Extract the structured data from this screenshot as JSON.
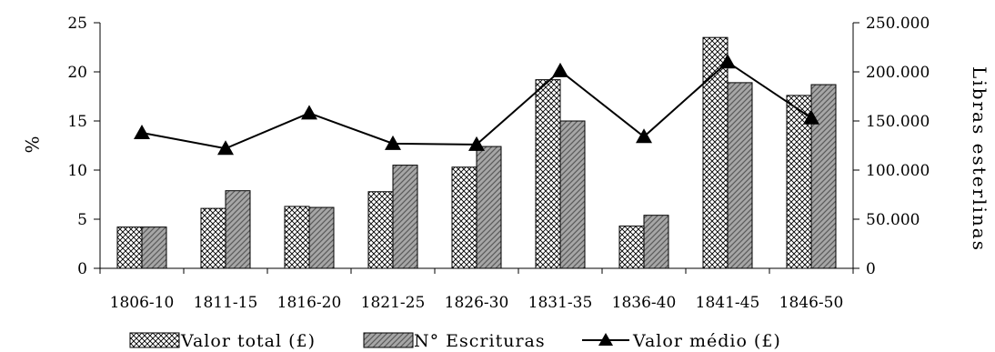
{
  "chart_data": {
    "type": "bar",
    "categories": [
      "1806-10",
      "1811-15",
      "1816-20",
      "1821-25",
      "1826-30",
      "1831-35",
      "1836-40",
      "1841-45",
      "1846-50"
    ],
    "series": [
      {
        "name": "Valor total (£)",
        "type": "bar",
        "axis": "left",
        "pattern": "crosshatch",
        "values": [
          4.2,
          6.1,
          6.3,
          7.8,
          10.3,
          19.2,
          4.3,
          23.5,
          17.6
        ]
      },
      {
        "name": "N° Escrituras",
        "type": "bar",
        "axis": "left",
        "pattern": "gray-hatch",
        "values": [
          4.2,
          7.9,
          6.2,
          10.5,
          12.4,
          15.0,
          5.4,
          18.9,
          18.7
        ]
      },
      {
        "name": "Valor médio (£)",
        "type": "line",
        "axis": "right",
        "marker": "triangle",
        "values": [
          138000,
          122000,
          158000,
          127000,
          126000,
          201000,
          134000,
          210000,
          153000
        ]
      }
    ],
    "ylabel": "%",
    "y2label": "Libras esterlinas",
    "ylim": [
      0,
      25
    ],
    "y2lim": [
      0,
      250000
    ],
    "yticks": [
      "0",
      "5",
      "10",
      "15",
      "20",
      "25"
    ],
    "y2ticks": [
      "0",
      "50.000",
      "100.000",
      "150.000",
      "200.000",
      "250.000"
    ],
    "grid": false,
    "legend_position": "bottom",
    "colors": {
      "bar_fill": "#ffffff",
      "bar2_fill": "#a6a6a6",
      "line": "#000000"
    }
  }
}
